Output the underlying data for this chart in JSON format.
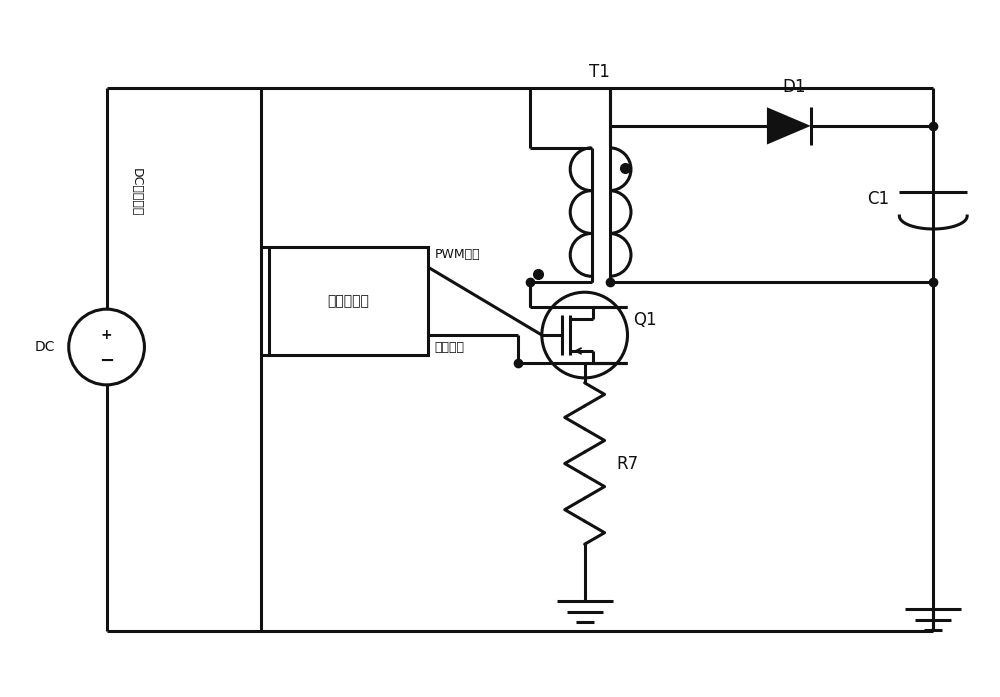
{
  "bg_color": "#ffffff",
  "line_color": "#111111",
  "lw": 2.2,
  "fig_width": 10.0,
  "fig_height": 6.97,
  "labels": {
    "DC_source": "DC",
    "DC_vertical_text": "DC直流电源",
    "controller_text": "电源控制器",
    "pwm_text": "PWM脉冲",
    "current_text": "电流采样",
    "T1": "T1",
    "D1": "D1",
    "C1": "C1",
    "Q1": "Q1",
    "R7": "R7"
  }
}
